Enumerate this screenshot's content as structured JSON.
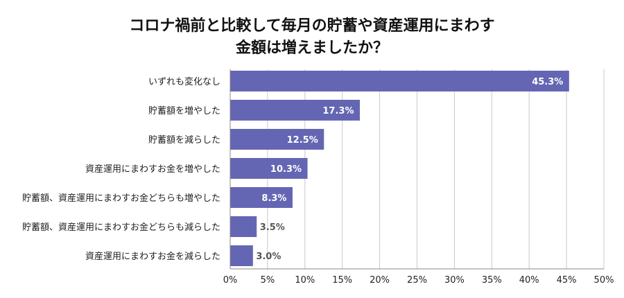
{
  "chart_data": {
    "type": "bar",
    "orientation": "horizontal",
    "title_lines": [
      "コロナ禍前と比較して毎月の貯蓄や資産運用にまわす",
      "金額は増えましたか？"
    ],
    "categories": [
      "いずれも変化なし",
      "貯蓄額を増やした",
      "貯蓄額を減らした",
      "資産運用にまわすお金を増やした",
      "貯蓄額、資産運用にまわすお金どちらも増やした",
      "貯蓄額、資産運用にまわすお金どちらも減らした",
      "資産運用にまわすお金を減らした"
    ],
    "values": [
      45.3,
      17.3,
      12.5,
      10.3,
      8.3,
      3.5,
      3.0
    ],
    "data_labels": [
      "45.3%",
      "17.3%",
      "12.5%",
      "10.3%",
      "8.3%",
      "3.5%",
      "3.0%"
    ],
    "xlim": [
      0,
      50
    ],
    "x_ticks": [
      "0%",
      "5%",
      "10%",
      "15%",
      "20%",
      "25%",
      "30%",
      "35%",
      "40%",
      "45%",
      "50%"
    ],
    "grid": true,
    "legend": "none",
    "colors": {
      "bar": "#6466b3",
      "grid": "#c8c8c8",
      "axis": "#888888",
      "label_inside": "#ffffff",
      "label_outside": "#555555"
    }
  }
}
